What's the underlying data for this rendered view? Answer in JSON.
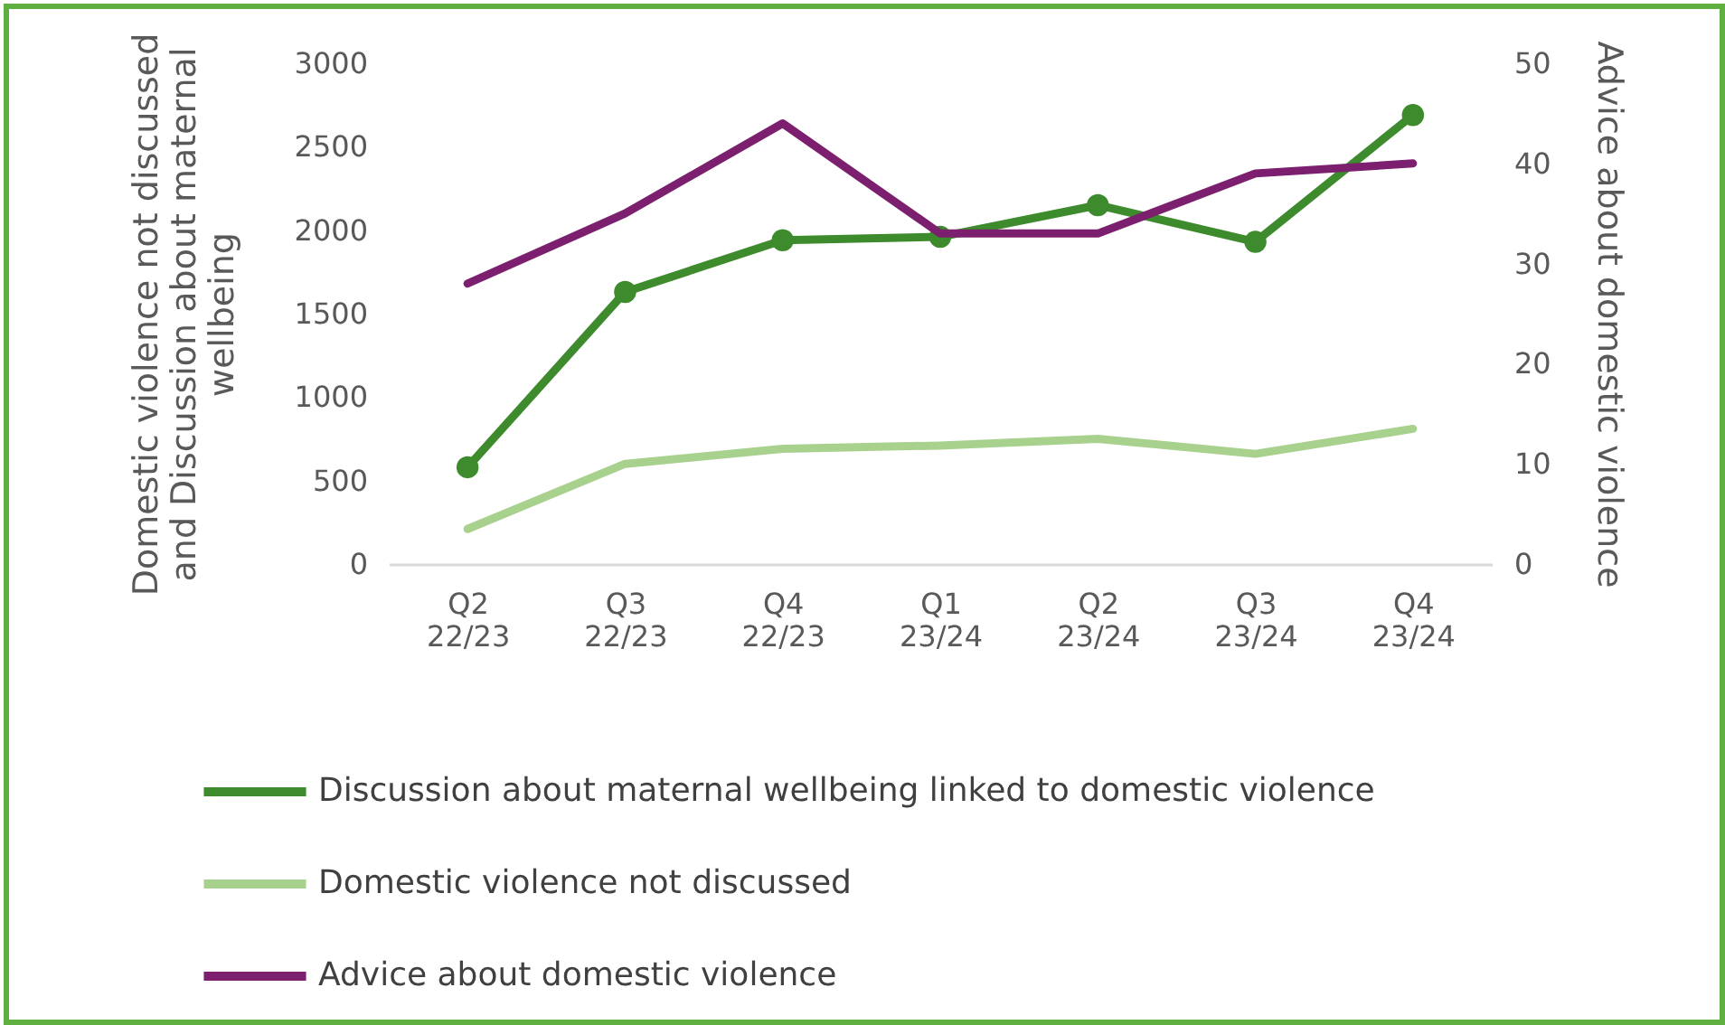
{
  "chart_data": {
    "type": "line",
    "categories": [
      "Q2 22/23",
      "Q3 22/23",
      "Q4 22/23",
      "Q1 23/24",
      "Q2 23/24",
      "Q3 23/24",
      "Q4 23/24"
    ],
    "series": [
      {
        "name": "Discussion about maternal wellbeing linked to domestic violence",
        "color": "#3d8b2d",
        "marker": "circle",
        "values": [
          580,
          1630,
          1940,
          1960,
          2150,
          1930,
          2690
        ]
      },
      {
        "name": "Domestic violence not discussed",
        "color": "#a9d18e",
        "values": [
          210,
          600,
          690,
          710,
          750,
          660,
          810
        ]
      },
      {
        "name": "Advice about domestic violence",
        "color": "#7b1f6e",
        "axis": "y2",
        "values": [
          28,
          35,
          44,
          33,
          33,
          39,
          40
        ]
      }
    ],
    "ylabel": "Domestic violence not discussed and Discussion about maternal wellbeing",
    "y2label": "Advice about domestic violence",
    "ylim": [
      0,
      3000
    ],
    "yticks": [
      0,
      500,
      1000,
      1500,
      2000,
      2500,
      3000
    ],
    "y2lim": [
      0,
      50
    ],
    "y2ticks": [
      0,
      10,
      20,
      30,
      40,
      50
    ],
    "grid": false,
    "legend": "bottom"
  }
}
